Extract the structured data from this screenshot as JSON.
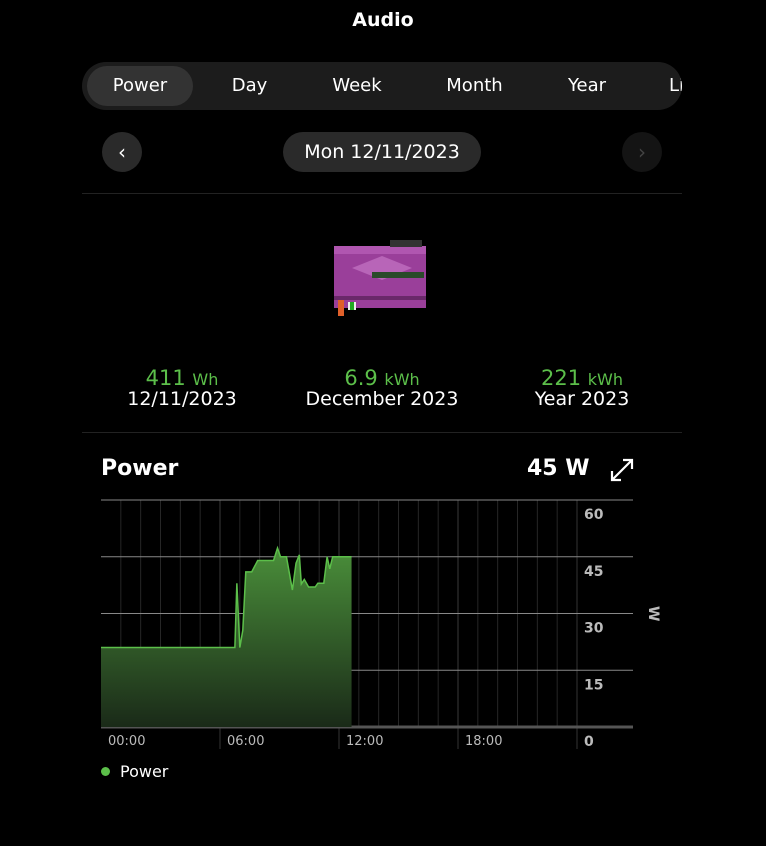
{
  "title": "Audio",
  "tabs": [
    {
      "label": "Power",
      "active": true
    },
    {
      "label": "Day"
    },
    {
      "label": "Week"
    },
    {
      "label": "Month"
    },
    {
      "label": "Year"
    },
    {
      "label": "Lifetime"
    }
  ],
  "date": {
    "label": "Mon 12/11/2023",
    "prev_icon": "chevron-left-icon",
    "next_icon": "chevron-right-icon"
  },
  "device_image": "audio-device",
  "stats": [
    {
      "value": "411",
      "unit": "Wh",
      "label": "12/11/2023"
    },
    {
      "value": "6.9",
      "unit": "kWh",
      "label": "December 2023"
    },
    {
      "value": "221",
      "unit": "kWh",
      "label": "Year 2023"
    }
  ],
  "power": {
    "title": "Power",
    "current": "45 W",
    "expand_icon": "expand-icon"
  },
  "chart_data": {
    "type": "area",
    "ylabel": "W",
    "ylim": [
      0,
      60
    ],
    "yticks": [
      "60",
      "45",
      "30",
      "15",
      "0"
    ],
    "xlim": [
      "00:00",
      "24:00"
    ],
    "xticks": [
      "00:00",
      "06:00",
      "12:00",
      "18:00"
    ],
    "grid": true,
    "legend_position": "bottom-left",
    "color": "#5cbf4a",
    "series": [
      {
        "name": "Power",
        "points": [
          [
            "00:00",
            21
          ],
          [
            "06:45",
            21
          ],
          [
            "06:51",
            38
          ],
          [
            "07:00",
            21
          ],
          [
            "07:09",
            25.6
          ],
          [
            "07:18",
            41
          ],
          [
            "07:36",
            41
          ],
          [
            "07:54",
            44
          ],
          [
            "08:42",
            44
          ],
          [
            "08:54",
            47.3
          ],
          [
            "09:03",
            45
          ],
          [
            "09:21",
            45
          ],
          [
            "09:39",
            36.2
          ],
          [
            "09:50",
            43.3
          ],
          [
            "10:00",
            45.5
          ],
          [
            "10:06",
            37.8
          ],
          [
            "10:15",
            39
          ],
          [
            "10:28",
            37
          ],
          [
            "10:48",
            37
          ],
          [
            "10:56",
            38
          ],
          [
            "11:14",
            38
          ],
          [
            "11:24",
            45
          ],
          [
            "11:32",
            41.8
          ],
          [
            "11:41",
            45
          ],
          [
            "12:38",
            45
          ]
        ]
      }
    ]
  }
}
